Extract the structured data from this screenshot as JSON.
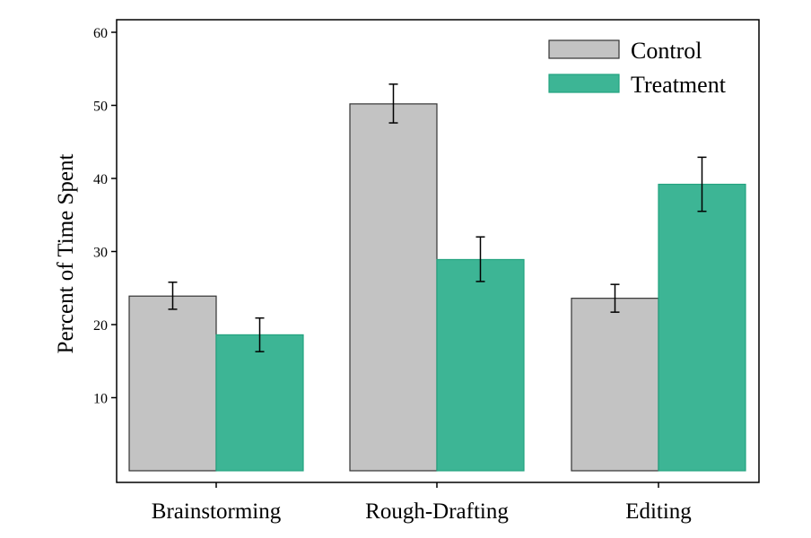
{
  "chart_data": {
    "type": "bar",
    "title": "",
    "xlabel": "",
    "ylabel": "Percent of Time Spent",
    "categories": [
      "Brainstorming",
      "Rough-Drafting",
      "Editing"
    ],
    "series": [
      {
        "name": "Control",
        "color": "#c3c3c3",
        "edge_color": "#333333",
        "values": [
          23.9,
          50.2,
          23.6
        ],
        "err_low": [
          22.1,
          47.6,
          21.7
        ],
        "err_high": [
          25.8,
          52.9,
          25.5
        ]
      },
      {
        "name": "Treatment",
        "color": "#3db595",
        "edge_color": "#22a37f",
        "values": [
          18.6,
          28.9,
          39.2
        ],
        "err_low": [
          16.3,
          25.9,
          35.5
        ],
        "err_high": [
          20.9,
          32.0,
          42.9
        ]
      }
    ],
    "y_ticks": [
      10,
      20,
      30,
      40,
      50,
      60
    ],
    "ylim": [
      0,
      60
    ],
    "grid": false,
    "legend_position": "top-right"
  }
}
